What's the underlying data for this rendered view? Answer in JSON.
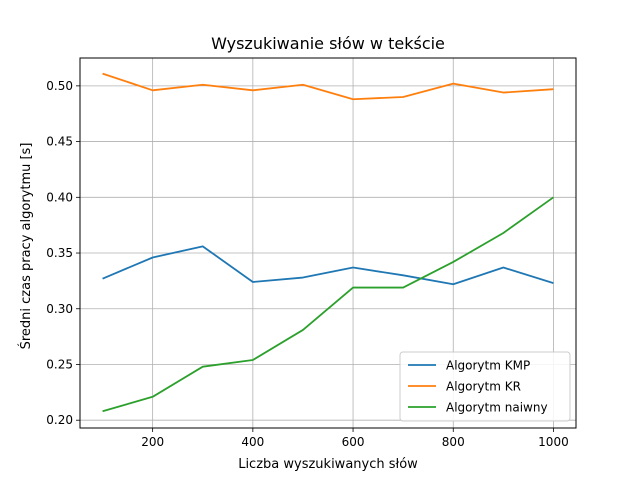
{
  "chart_data": {
    "type": "line",
    "title": "Wyszukiwanie słów w tekście",
    "xlabel": "Liczba wyszukiwanych słów",
    "ylabel": "Średni czas pracy algorytmu [s]",
    "x": [
      100,
      200,
      300,
      400,
      500,
      600,
      700,
      800,
      900,
      1000
    ],
    "xlim": [
      55,
      1045
    ],
    "ylim": [
      0.193,
      0.525
    ],
    "xticks": [
      200,
      400,
      600,
      800,
      1000
    ],
    "xtick_labels": [
      "200",
      "400",
      "600",
      "800",
      "1000"
    ],
    "yticks": [
      0.2,
      0.25,
      0.3,
      0.35,
      0.4,
      0.45,
      0.5
    ],
    "ytick_labels": [
      "0.20",
      "0.25",
      "0.30",
      "0.35",
      "0.40",
      "0.45",
      "0.50"
    ],
    "grid": true,
    "legend_position": "lower-right",
    "series": [
      {
        "name": "Algorytm KMP",
        "color": "#1f77b4",
        "values": [
          0.327,
          0.346,
          0.356,
          0.324,
          0.328,
          0.337,
          0.33,
          0.322,
          0.337,
          0.323
        ]
      },
      {
        "name": "Algorytm KR",
        "color": "#ff7f0e",
        "values": [
          0.511,
          0.496,
          0.501,
          0.496,
          0.501,
          0.488,
          0.49,
          0.502,
          0.494,
          0.497
        ]
      },
      {
        "name": "Algorytm naiwny",
        "color": "#2ca02c",
        "values": [
          0.208,
          0.221,
          0.248,
          0.254,
          0.281,
          0.319,
          0.319,
          0.342,
          0.368,
          0.4
        ]
      }
    ]
  }
}
